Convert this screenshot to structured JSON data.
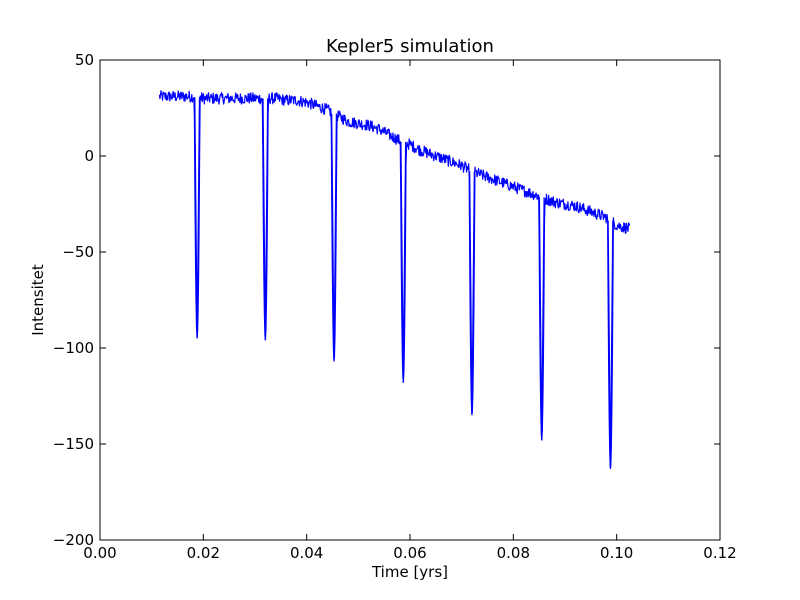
{
  "chart_data": {
    "type": "line",
    "title": "Kepler5 simulation",
    "xlabel": "Time [yrs]",
    "ylabel": "Intensitet",
    "xlim": [
      0.0,
      0.12
    ],
    "ylim": [
      -200,
      50
    ],
    "x_ticks": [
      0.0,
      0.02,
      0.04,
      0.06,
      0.08,
      0.1,
      0.12
    ],
    "x_tick_labels": [
      "0.00",
      "0.02",
      "0.04",
      "0.06",
      "0.08",
      "0.10",
      "0.12"
    ],
    "y_ticks": [
      -200,
      -150,
      -100,
      -50,
      0,
      50
    ],
    "y_tick_labels": [
      "−200",
      "−150",
      "−100",
      "−50",
      "0",
      "50"
    ],
    "grid": false,
    "series": [
      {
        "color": "#0000ff",
        "baseline_x": [
          0.0115,
          0.0135,
          0.016,
          0.018,
          0.02,
          0.022,
          0.025,
          0.028,
          0.03,
          0.032,
          0.034,
          0.036,
          0.038,
          0.04,
          0.042,
          0.044,
          0.046,
          0.048,
          0.05,
          0.052,
          0.054,
          0.056,
          0.058,
          0.06,
          0.062,
          0.064,
          0.066,
          0.068,
          0.07,
          0.072,
          0.074,
          0.076,
          0.078,
          0.08,
          0.082,
          0.084,
          0.086,
          0.088,
          0.09,
          0.092,
          0.094,
          0.096,
          0.098,
          0.1,
          0.1025
        ],
        "baseline_y": [
          31,
          31,
          31,
          31,
          30,
          30,
          30,
          30,
          30,
          30,
          30,
          29,
          29,
          28,
          26,
          24,
          21,
          18,
          17,
          16,
          14,
          11,
          8,
          6,
          3,
          1,
          -1,
          -3,
          -5,
          -8,
          -10,
          -12,
          -14,
          -16,
          -18,
          -20,
          -22,
          -24,
          -25,
          -26,
          -28,
          -30,
          -32,
          -36,
          -38
        ],
        "noise_amplitude": 3,
        "transits": [
          {
            "x": 0.0188,
            "min": -95
          },
          {
            "x": 0.032,
            "min": -96
          },
          {
            "x": 0.0453,
            "min": -107
          },
          {
            "x": 0.0587,
            "min": -118
          },
          {
            "x": 0.072,
            "min": -135
          },
          {
            "x": 0.0855,
            "min": -148
          },
          {
            "x": 0.0988,
            "min": -163
          }
        ]
      }
    ]
  }
}
